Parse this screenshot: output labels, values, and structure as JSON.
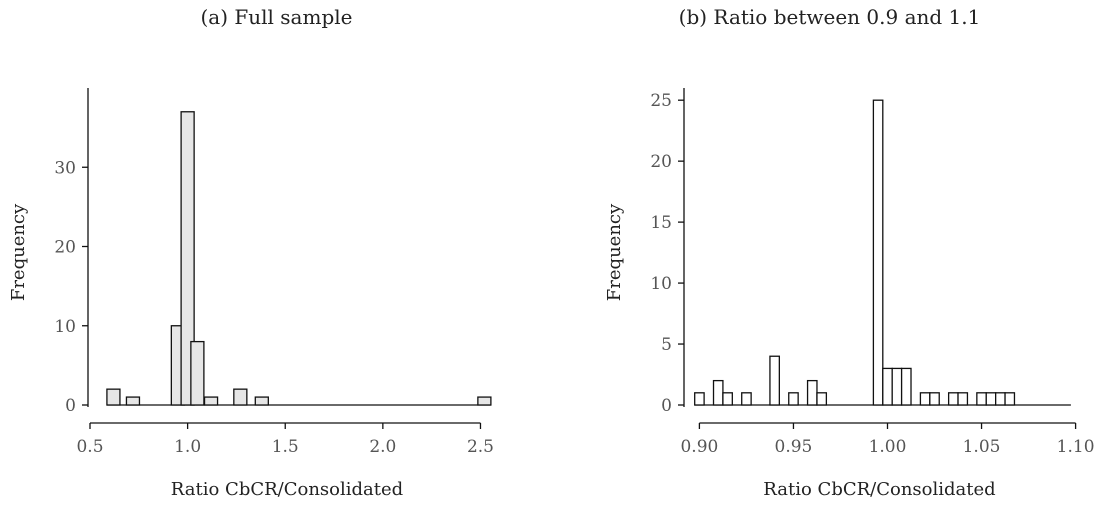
{
  "chart_data": [
    {
      "type": "bar",
      "title": "(a) Full sample",
      "xlabel": "Ratio CbCR/Consolidated",
      "ylabel": "Frequency",
      "xlim": [
        0.5,
        2.6
      ],
      "ylim": [
        0,
        40
      ],
      "xticks": [
        "0.5",
        "1.0",
        "1.5",
        "2.0",
        "2.5"
      ],
      "xtick_values": [
        0.5,
        1.0,
        1.5,
        2.0,
        2.5
      ],
      "yticks": [
        "0",
        "10",
        "20",
        "30"
      ],
      "ytick_values": [
        0,
        10,
        20,
        30
      ],
      "bin_width": 0.0667,
      "bar_fill": "#e6e6e6",
      "bins": [
        {
          "x": 0.62,
          "count": 2
        },
        {
          "x": 0.72,
          "count": 1
        },
        {
          "x": 0.95,
          "count": 10
        },
        {
          "x": 1.0,
          "count": 37
        },
        {
          "x": 1.05,
          "count": 8
        },
        {
          "x": 1.12,
          "count": 1
        },
        {
          "x": 1.27,
          "count": 2
        },
        {
          "x": 1.38,
          "count": 1
        },
        {
          "x": 2.52,
          "count": 1
        }
      ]
    },
    {
      "type": "bar",
      "title": "(b) Ratio between 0.9 and 1.1",
      "xlabel": "Ratio CbCR/Consolidated",
      "ylabel": "Frequency",
      "xlim": [
        0.895,
        1.105
      ],
      "ylim": [
        0,
        26
      ],
      "xticks": [
        "0.90",
        "0.95",
        "1.00",
        "1.05",
        "1.10"
      ],
      "xtick_values": [
        0.9,
        0.95,
        1.0,
        1.05,
        1.1
      ],
      "yticks": [
        "0",
        "5",
        "10",
        "15",
        "20",
        "25"
      ],
      "ytick_values": [
        0,
        5,
        10,
        15,
        20,
        25
      ],
      "bin_width": 0.005,
      "bar_fill": "#ffffff",
      "bins": [
        {
          "x": 0.9,
          "count": 1
        },
        {
          "x": 0.905,
          "count": 0
        },
        {
          "x": 0.91,
          "count": 2
        },
        {
          "x": 0.915,
          "count": 1
        },
        {
          "x": 0.92,
          "count": 0
        },
        {
          "x": 0.925,
          "count": 1
        },
        {
          "x": 0.93,
          "count": 0
        },
        {
          "x": 0.935,
          "count": 0
        },
        {
          "x": 0.94,
          "count": 4
        },
        {
          "x": 0.945,
          "count": 0
        },
        {
          "x": 0.95,
          "count": 1
        },
        {
          "x": 0.955,
          "count": 0
        },
        {
          "x": 0.96,
          "count": 2
        },
        {
          "x": 0.965,
          "count": 1
        },
        {
          "x": 0.97,
          "count": 0
        },
        {
          "x": 0.975,
          "count": 0
        },
        {
          "x": 0.98,
          "count": 0
        },
        {
          "x": 0.985,
          "count": 0
        },
        {
          "x": 0.99,
          "count": 0
        },
        {
          "x": 0.995,
          "count": 25
        },
        {
          "x": 1.0,
          "count": 3
        },
        {
          "x": 1.005,
          "count": 3
        },
        {
          "x": 1.01,
          "count": 3
        },
        {
          "x": 1.015,
          "count": 0
        },
        {
          "x": 1.02,
          "count": 1
        },
        {
          "x": 1.025,
          "count": 1
        },
        {
          "x": 1.03,
          "count": 0
        },
        {
          "x": 1.035,
          "count": 1
        },
        {
          "x": 1.04,
          "count": 1
        },
        {
          "x": 1.045,
          "count": 0
        },
        {
          "x": 1.05,
          "count": 1
        },
        {
          "x": 1.055,
          "count": 1
        },
        {
          "x": 1.06,
          "count": 1
        },
        {
          "x": 1.065,
          "count": 1
        },
        {
          "x": 1.07,
          "count": 0
        },
        {
          "x": 1.075,
          "count": 0
        },
        {
          "x": 1.08,
          "count": 0
        },
        {
          "x": 1.085,
          "count": 0
        },
        {
          "x": 1.09,
          "count": 0
        },
        {
          "x": 1.095,
          "count": 0
        }
      ]
    }
  ]
}
